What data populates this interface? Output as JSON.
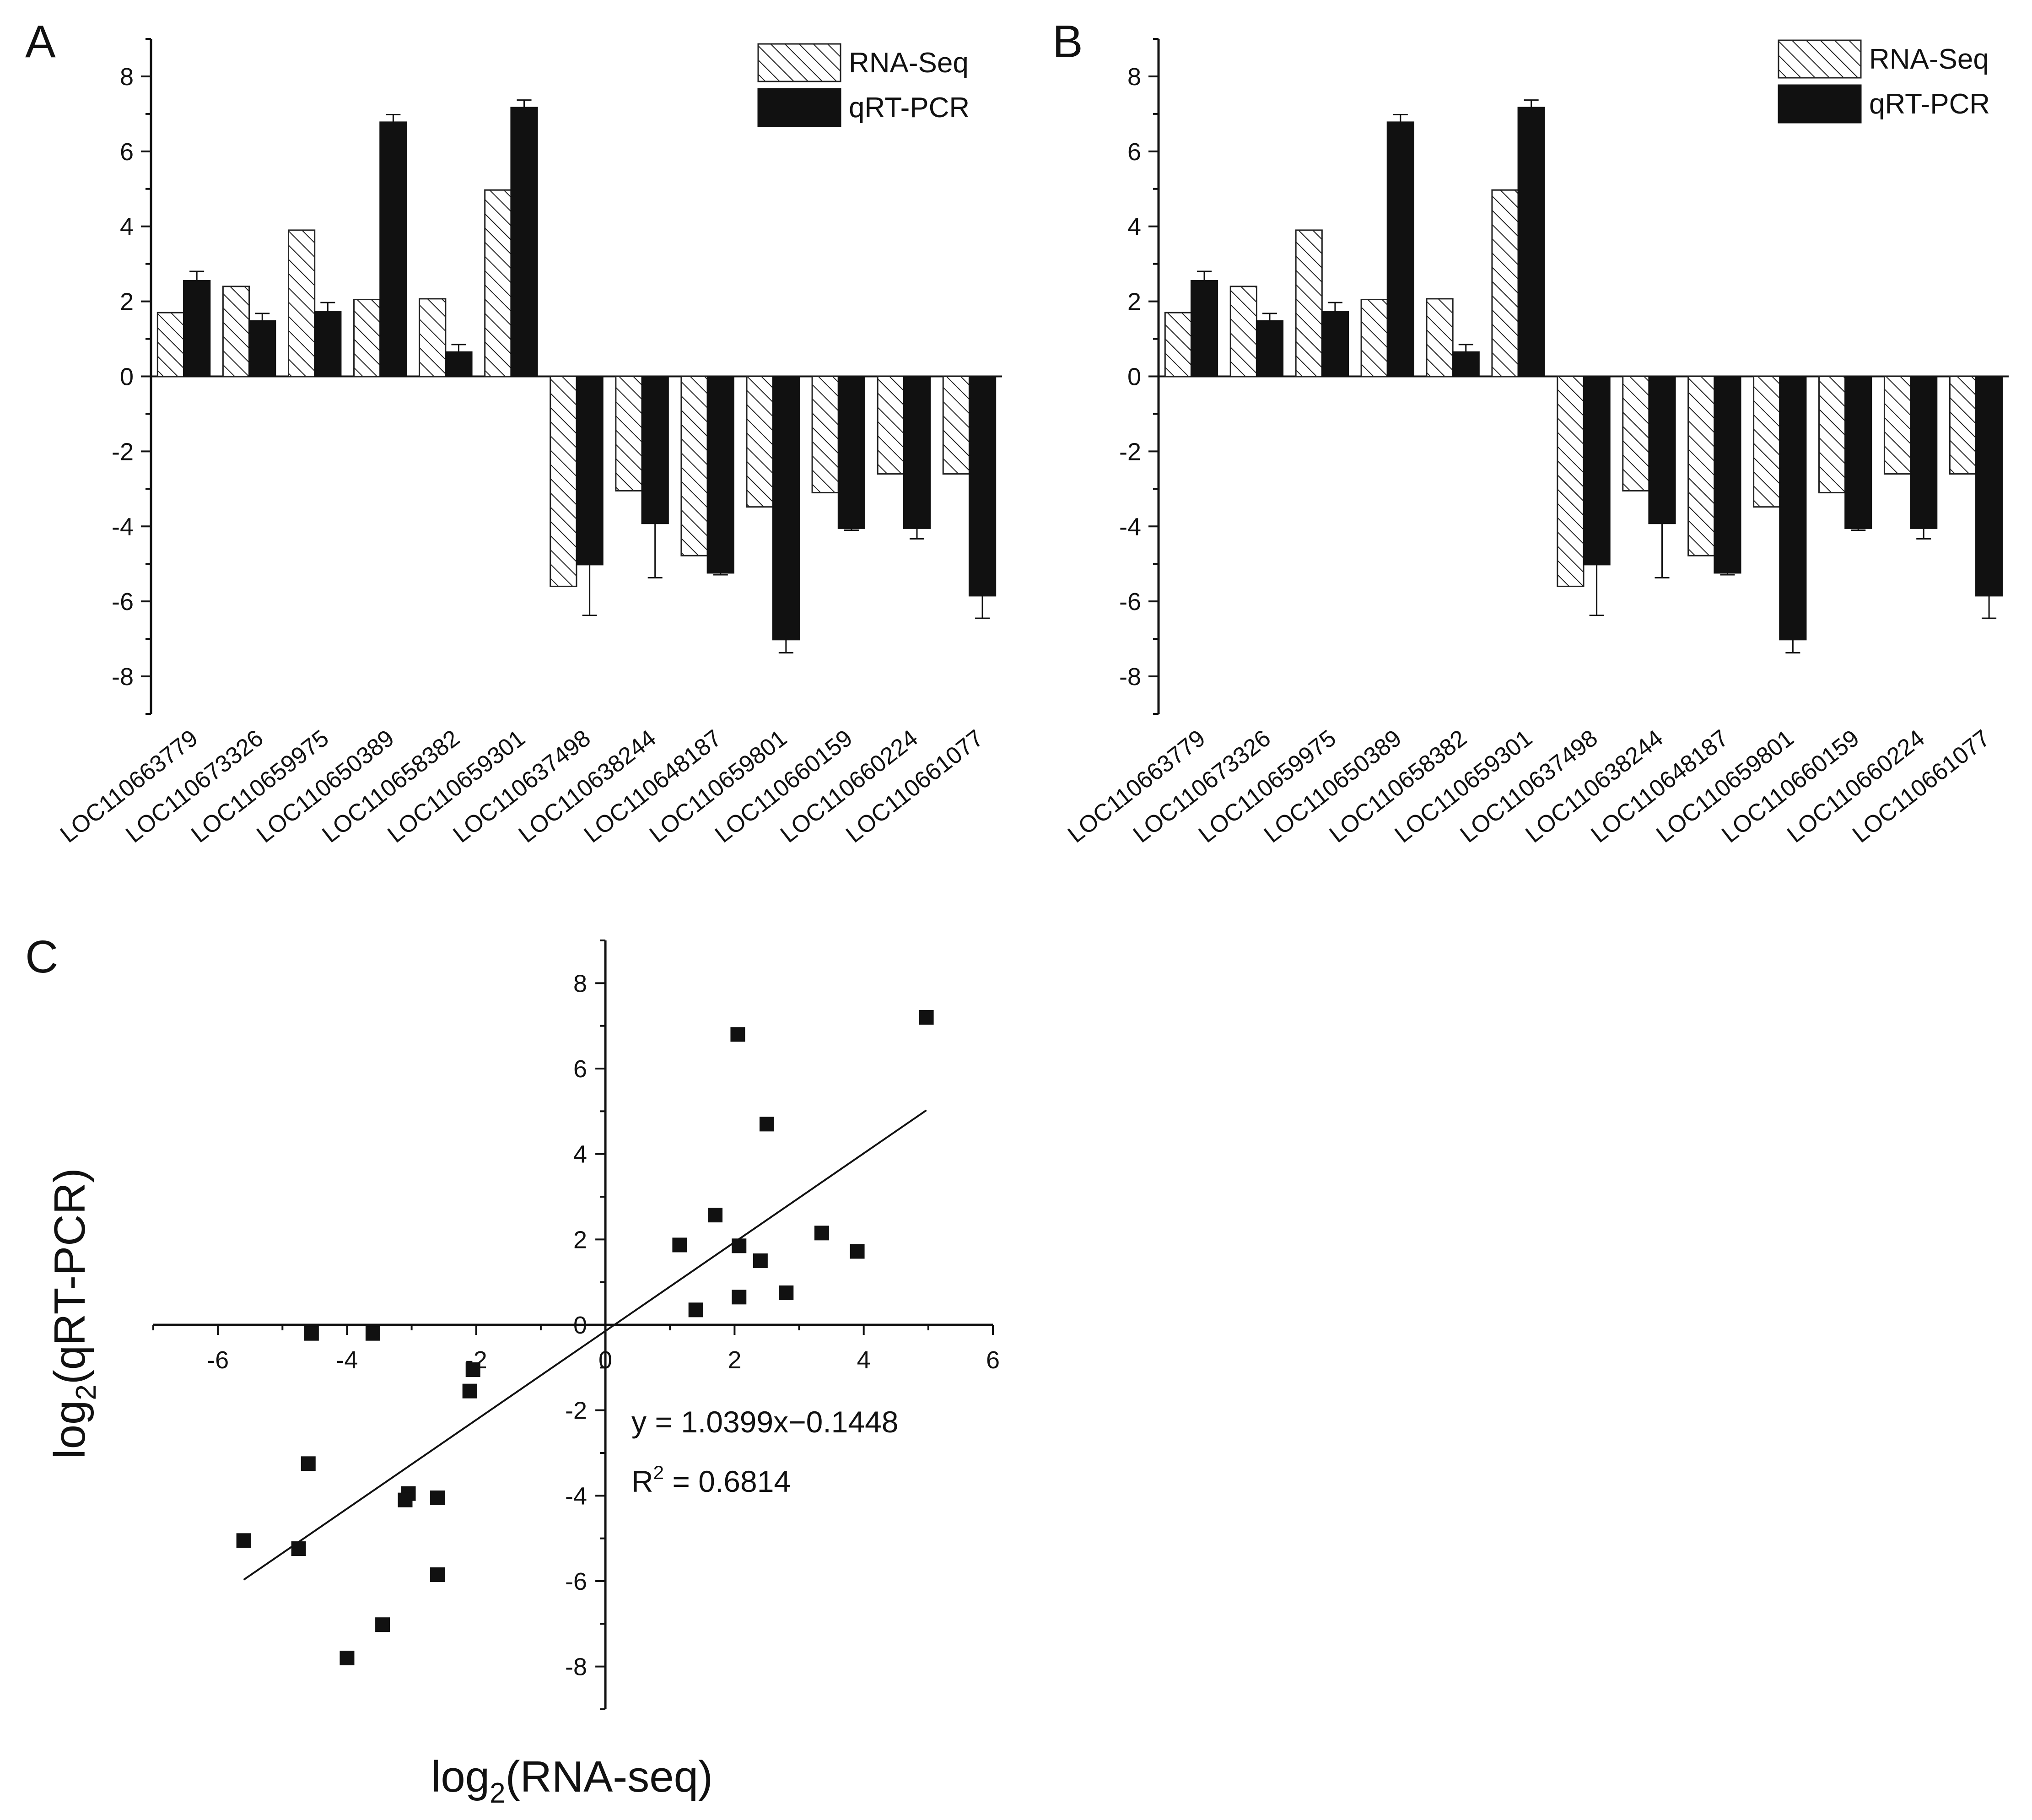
{
  "chart_data": [
    {
      "panel": "A",
      "type": "bar",
      "title": "",
      "xlabel": "",
      "ylabel": "",
      "ylim": [
        -9,
        9
      ],
      "yticks": [
        -8,
        -6,
        -4,
        -2,
        0,
        2,
        4,
        6,
        8
      ],
      "ytick_labels": [
        "-8",
        "-6",
        "-4",
        "-2",
        "0",
        "2",
        "4",
        "6",
        "8"
      ],
      "legend_position": "top-right",
      "categories": [
        "LOC110663779",
        "LOC110673326",
        "LOC110659975",
        "LOC110650389",
        "LOC110658382",
        "LOC110659301",
        "LOC110637498",
        "LOC110638244",
        "LOC110648187",
        "LOC110659801",
        "LOC110660159",
        "LOC110660224",
        "LOC110661077"
      ],
      "series": [
        {
          "name": "RNA-Seq",
          "style": "hatched",
          "values": [
            1.7,
            2.4,
            3.9,
            2.05,
            2.07,
            4.97,
            -5.6,
            -3.05,
            -4.78,
            -3.48,
            -3.1,
            -2.6,
            -2.6
          ]
        },
        {
          "name": "qRT-PCR",
          "style": "solid",
          "values": [
            2.55,
            1.48,
            1.72,
            6.78,
            0.65,
            7.17,
            -5.02,
            -3.92,
            -5.24,
            -7.02,
            -4.05,
            -4.05,
            -5.85
          ],
          "errors": [
            0.25,
            0.2,
            0.25,
            0.2,
            0.2,
            0.2,
            1.35,
            1.45,
            0.05,
            0.35,
            0.05,
            0.28,
            0.6
          ]
        }
      ]
    },
    {
      "panel": "B",
      "type": "bar",
      "title": "",
      "xlabel": "",
      "ylabel": "",
      "ylim": [
        -9,
        9
      ],
      "yticks": [
        -8,
        -6,
        -4,
        -2,
        0,
        2,
        4,
        6,
        8
      ],
      "ytick_labels": [
        "-8",
        "-6",
        "-4",
        "-2",
        "0",
        "2",
        "4",
        "6",
        "8"
      ],
      "legend_position": "top-right",
      "categories": [
        "LOC110663779",
        "LOC110673326",
        "LOC110659975",
        "LOC110650389",
        "LOC110658382",
        "LOC110659301",
        "LOC110637498",
        "LOC110638244",
        "LOC110648187",
        "LOC110659801",
        "LOC110660159",
        "LOC110660224",
        "LOC110661077"
      ],
      "series": [
        {
          "name": "RNA-Seq",
          "style": "hatched",
          "values": [
            1.7,
            2.4,
            3.9,
            2.05,
            2.07,
            4.97,
            -5.6,
            -3.05,
            -4.78,
            -3.48,
            -3.1,
            -2.6,
            -2.6
          ]
        },
        {
          "name": "qRT-PCR",
          "style": "solid",
          "values": [
            2.55,
            1.48,
            1.72,
            6.78,
            0.65,
            7.17,
            -5.02,
            -3.92,
            -5.24,
            -7.02,
            -4.05,
            -4.05,
            -5.85
          ],
          "errors": [
            0.25,
            0.2,
            0.25,
            0.2,
            0.2,
            0.2,
            1.35,
            1.45,
            0.05,
            0.35,
            0.05,
            0.28,
            0.6
          ]
        }
      ]
    },
    {
      "panel": "C",
      "type": "scatter",
      "title": "",
      "xlabel_base": "log",
      "xlabel_sub": "2",
      "xlabel_rest": "(RNA-seq)",
      "ylabel_base": "log",
      "ylabel_sub": "2",
      "ylabel_rest": "(qRT-PCR)",
      "xlim": [
        -7,
        6
      ],
      "ylim": [
        -9,
        9
      ],
      "xticks": [
        -6,
        -4,
        -2,
        0,
        2,
        4,
        6
      ],
      "xtick_labels": [
        "-6",
        "-4",
        "-2",
        "0",
        "2",
        "4",
        "6"
      ],
      "yticks": [
        -8,
        -6,
        -4,
        -2,
        0,
        2,
        4,
        6,
        8
      ],
      "ytick_labels": [
        "-8",
        "-6",
        "-4",
        "-2",
        "0",
        "2",
        "4",
        "6",
        "8"
      ],
      "points": [
        {
          "x": 2.05,
          "y": 6.8
        },
        {
          "x": 4.97,
          "y": 7.2
        },
        {
          "x": 2.5,
          "y": 4.7
        },
        {
          "x": 1.7,
          "y": 2.57
        },
        {
          "x": 1.15,
          "y": 1.87
        },
        {
          "x": 2.07,
          "y": 1.85
        },
        {
          "x": 3.35,
          "y": 2.15
        },
        {
          "x": 3.9,
          "y": 1.72
        },
        {
          "x": 2.4,
          "y": 1.5
        },
        {
          "x": 1.4,
          "y": 0.35
        },
        {
          "x": 2.07,
          "y": 0.65
        },
        {
          "x": 2.8,
          "y": 0.75
        },
        {
          "x": -4.55,
          "y": -0.2
        },
        {
          "x": -3.6,
          "y": -0.2
        },
        {
          "x": -2.05,
          "y": -1.05
        },
        {
          "x": -2.1,
          "y": -1.55
        },
        {
          "x": -4.6,
          "y": -3.25
        },
        {
          "x": -3.05,
          "y": -3.95
        },
        {
          "x": -3.1,
          "y": -4.1
        },
        {
          "x": -2.6,
          "y": -4.05
        },
        {
          "x": -5.6,
          "y": -5.05
        },
        {
          "x": -4.75,
          "y": -5.24
        },
        {
          "x": -2.6,
          "y": -5.85
        },
        {
          "x": -3.45,
          "y": -7.02
        },
        {
          "x": -4.0,
          "y": -7.8
        }
      ],
      "fit": {
        "slope": 1.0399,
        "intercept": -0.1448,
        "x_range": [
          -5.6,
          4.97
        ]
      },
      "equation_text": "y = 1.0399x−0.1448",
      "r2_base": "R",
      "r2_sup": "2",
      "r2_rest": " = 0.6814"
    }
  ]
}
